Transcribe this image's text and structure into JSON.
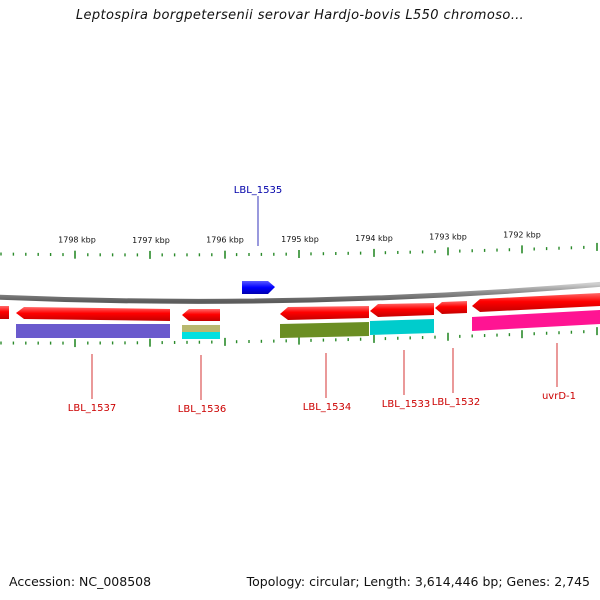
{
  "title": "Leptospira borgpetersenii serovar Hardjo-bovis L550 chromoso…",
  "footer": {
    "accession": "Accession: NC_008508",
    "summary": "Topology: circular; Length: 3,614,446 bp; Genes: 2,745"
  },
  "colors": {
    "forward_cds": "#0000ff",
    "reverse_cds": "#ff0000",
    "reverse_label": "#cc0000",
    "forward_label": "#0000aa",
    "tick": "#2a8a2a",
    "backbone": "#888888"
  },
  "axis": {
    "ticks": [
      {
        "label": "1798 kbp"
      },
      {
        "label": "1797 kbp"
      },
      {
        "label": "1796 kbp"
      },
      {
        "label": "1795 kbp"
      },
      {
        "label": "1794 kbp"
      },
      {
        "label": "1793 kbp"
      },
      {
        "label": "1792 kbp"
      }
    ]
  },
  "genes": [
    {
      "name": "LBL_1535",
      "strand": "forward"
    },
    {
      "name": "LBL_1537",
      "strand": "reverse"
    },
    {
      "name": "LBL_1536",
      "strand": "reverse"
    },
    {
      "name": "LBL_1534",
      "strand": "reverse"
    },
    {
      "name": "LBL_1533",
      "strand": "reverse"
    },
    {
      "name": "LBL_1532",
      "strand": "reverse"
    },
    {
      "name": "uvrD-1",
      "strand": "reverse"
    }
  ],
  "cog_colors": [
    "#6a5acd",
    "#b8b870",
    "#00e0e0",
    "#6b8e23",
    "#00cccc",
    "#ff1493"
  ]
}
